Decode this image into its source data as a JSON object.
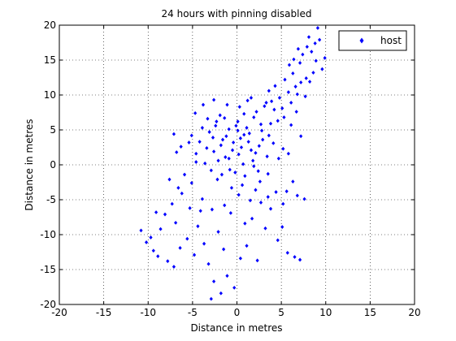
{
  "chart_data": {
    "type": "scatter",
    "title": "24 hours with pinning disabled",
    "xlabel": "Distance in metres",
    "ylabel": "Distance in metres",
    "xlim": [
      -20,
      20
    ],
    "ylim": [
      -20,
      20
    ],
    "xticks": [
      -20,
      -15,
      -10,
      -5,
      0,
      5,
      10,
      15,
      20
    ],
    "yticks": [
      -20,
      -15,
      -10,
      -5,
      0,
      5,
      10,
      15,
      20
    ],
    "xtick_labels": [
      "-20",
      "-15",
      "-10",
      "-5",
      "0",
      "5",
      "10",
      "15",
      "20"
    ],
    "ytick_labels": [
      "-20",
      "-15",
      "-10",
      "-5",
      "0",
      "5",
      "10",
      "15",
      "20"
    ],
    "grid": true,
    "legend_position": "top-right",
    "marker": "filled-diamond",
    "series": [
      {
        "name": "host",
        "color": "#0000ff",
        "points": [
          [
            0.5,
            2.5
          ],
          [
            -1.2,
            4.1
          ],
          [
            1.8,
            0.6
          ],
          [
            -2.6,
            1.9
          ],
          [
            2.9,
            3.6
          ],
          [
            0.1,
            6.2
          ],
          [
            -0.8,
            -0.7
          ],
          [
            3.4,
            1.2
          ],
          [
            -3.1,
            4.7
          ],
          [
            1.1,
            5.3
          ],
          [
            -1.9,
            7.1
          ],
          [
            2.2,
            7.6
          ],
          [
            -0.4,
            3.2
          ],
          [
            0.9,
            -1.6
          ],
          [
            -2.2,
            -2.1
          ],
          [
            3.8,
            5.9
          ],
          [
            -3.6,
            0.2
          ],
          [
            1.6,
            2.1
          ],
          [
            -1.3,
            1.1
          ],
          [
            0.3,
            8.3
          ],
          [
            4.1,
            3.1
          ],
          [
            -4.2,
            3.3
          ],
          [
            2.6,
            -2.4
          ],
          [
            -0.6,
            -3.3
          ],
          [
            1.4,
            4.5
          ],
          [
            -2.4,
            5.6
          ],
          [
            0.7,
            0.1
          ],
          [
            3.1,
            8.4
          ],
          [
            -1.7,
            -1.4
          ],
          [
            2.4,
            -0.9
          ],
          [
            -3.3,
            6.6
          ],
          [
            0.2,
            1.5
          ],
          [
            1.9,
            6.8
          ],
          [
            -0.9,
            5.1
          ],
          [
            4.6,
            6.3
          ],
          [
            -4.6,
            1.6
          ],
          [
            2.8,
            4.9
          ],
          [
            -2.9,
            -0.8
          ],
          [
            0.6,
            -2.9
          ],
          [
            -1.1,
            8.6
          ],
          [
            3.5,
            -1.3
          ],
          [
            -3.9,
            5.3
          ],
          [
            1.2,
            9.2
          ],
          [
            -0.2,
            -1.1
          ],
          [
            2.1,
            1.7
          ],
          [
            -1.6,
            3.6
          ],
          [
            0.8,
            4.3
          ],
          [
            -2.1,
            0.6
          ],
          [
            5.2,
            2.3
          ],
          [
            -5.1,
            4.2
          ],
          [
            6.3,
            13.1
          ],
          [
            7.1,
            14.6
          ],
          [
            7.8,
            12.4
          ],
          [
            8.4,
            16.2
          ],
          [
            9.1,
            19.6
          ],
          [
            8.8,
            17.4
          ],
          [
            7.4,
            15.8
          ],
          [
            6.6,
            11.2
          ],
          [
            5.8,
            10.4
          ],
          [
            9.6,
            13.7
          ],
          [
            8.1,
            18.3
          ],
          [
            6.9,
            16.6
          ],
          [
            7.7,
            9.8
          ],
          [
            5.4,
            12.2
          ],
          [
            4.8,
            9.6
          ],
          [
            8.9,
            14.9
          ],
          [
            9.9,
            15.3
          ],
          [
            6.1,
            8.9
          ],
          [
            3.6,
            10.6
          ],
          [
            7.2,
            11.8
          ],
          [
            8.6,
            13.2
          ],
          [
            5.9,
            14.3
          ],
          [
            4.3,
            11.3
          ],
          [
            6.8,
            10.1
          ],
          [
            9.3,
            17.9
          ],
          [
            7.9,
            16.9
          ],
          [
            5.1,
            8.1
          ],
          [
            3.9,
            9.1
          ],
          [
            8.2,
            11.9
          ],
          [
            6.4,
            15.1
          ],
          [
            -6.2,
            -4.1
          ],
          [
            -7.3,
            -5.6
          ],
          [
            -8.6,
            -9.2
          ],
          [
            -9.4,
            -12.3
          ],
          [
            -10.2,
            -11.1
          ],
          [
            -7.8,
            -13.8
          ],
          [
            -6.9,
            -8.3
          ],
          [
            -5.6,
            -10.6
          ],
          [
            -4.8,
            -12.9
          ],
          [
            -8.1,
            -7.1
          ],
          [
            -9.7,
            -10.4
          ],
          [
            -6.4,
            -11.9
          ],
          [
            -7.1,
            -14.6
          ],
          [
            -5.3,
            -6.2
          ],
          [
            -8.9,
            -13.1
          ],
          [
            -4.4,
            -8.8
          ],
          [
            -3.2,
            -14.2
          ],
          [
            -2.6,
            -16.7
          ],
          [
            -1.8,
            -18.4
          ],
          [
            -2.9,
            -19.2
          ],
          [
            -1.1,
            -15.9
          ],
          [
            -0.3,
            -17.6
          ],
          [
            0.4,
            -13.4
          ],
          [
            -1.5,
            -12.1
          ],
          [
            1.1,
            -11.6
          ],
          [
            2.3,
            -13.7
          ],
          [
            -3.7,
            -11.3
          ],
          [
            -2.1,
            -9.6
          ],
          [
            0.9,
            -8.4
          ],
          [
            -0.7,
            -6.9
          ],
          [
            1.7,
            -7.7
          ],
          [
            -4.1,
            -6.6
          ],
          [
            3.2,
            -9.1
          ],
          [
            4.6,
            -10.8
          ],
          [
            5.7,
            -12.6
          ],
          [
            6.5,
            -13.2
          ],
          [
            7.1,
            -13.6
          ],
          [
            3.8,
            -6.3
          ],
          [
            5.1,
            -8.9
          ],
          [
            -9.1,
            -6.8
          ],
          [
            -10.8,
            -9.4
          ],
          [
            -6.6,
            -3.3
          ],
          [
            -7.6,
            -2.1
          ],
          [
            -5.9,
            -1.4
          ],
          [
            -6.8,
            1.8
          ],
          [
            -5.4,
            3.2
          ],
          [
            -7.1,
            4.4
          ],
          [
            -6.3,
            2.6
          ],
          [
            6.1,
            5.7
          ],
          [
            7.2,
            4.1
          ],
          [
            5.6,
            -3.8
          ],
          [
            6.8,
            -4.4
          ],
          [
            7.6,
            -4.9
          ],
          [
            5.2,
            -5.6
          ],
          [
            4.4,
            -3.9
          ],
          [
            6.3,
            -2.4
          ],
          [
            3.5,
            -4.6
          ],
          [
            2.7,
            -5.4
          ],
          [
            1.5,
            -5.1
          ],
          [
            -1.4,
            -5.8
          ],
          [
            -2.8,
            -6.4
          ],
          [
            -3.9,
            -4.9
          ],
          [
            0.2,
            -4.3
          ],
          [
            2.1,
            -3.6
          ],
          [
            -5.1,
            -2.6
          ],
          [
            -4.6,
            0.4
          ],
          [
            4.7,
            0.9
          ],
          [
            5.8,
            1.6
          ],
          [
            6.7,
            7.6
          ],
          [
            5.3,
            6.8
          ],
          [
            4.2,
            7.9
          ],
          [
            -4.7,
            7.4
          ],
          [
            -3.8,
            8.6
          ],
          [
            -2.6,
            9.3
          ],
          [
            1.6,
            9.6
          ],
          [
            3.3,
            8.9
          ],
          [
            0.1,
            4.9
          ],
          [
            -0.5,
            2.1
          ],
          [
            1.3,
            3.3
          ],
          [
            -1.8,
            2.8
          ],
          [
            2.5,
            2.7
          ],
          [
            -0.9,
            0.9
          ],
          [
            0.8,
            7.3
          ],
          [
            -2.3,
            6.2
          ],
          [
            1.9,
            -0.2
          ],
          [
            -1.4,
            6.7
          ],
          [
            0.4,
            3.8
          ],
          [
            -0.1,
            5.6
          ],
          [
            2.7,
            5.8
          ],
          [
            -2.7,
            3.9
          ],
          [
            3.6,
            4.2
          ],
          [
            -3.4,
            2.4
          ]
        ]
      }
    ]
  }
}
